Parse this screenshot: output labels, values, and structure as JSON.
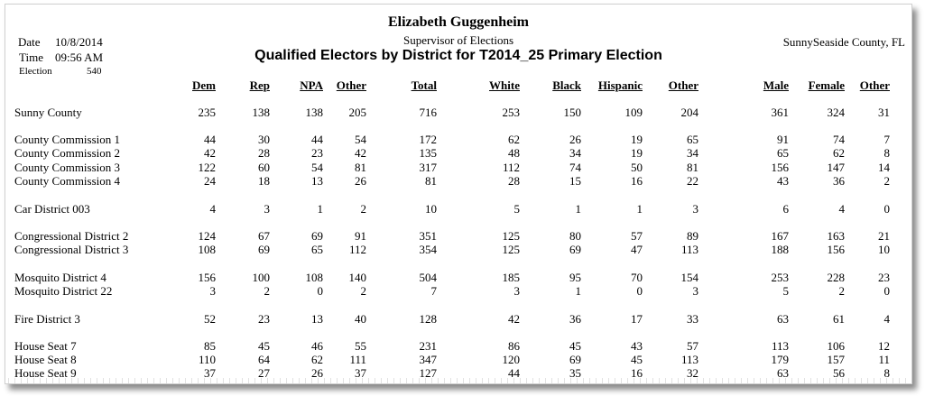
{
  "header": {
    "org_name": "Elizabeth Guggenheim",
    "org_title": "Supervisor of Elections",
    "report_title": "Qualified Electors by District for T2014_25 Primary Election",
    "date_label": "Date",
    "date_value": "10/8/2014",
    "time_label": "Time",
    "time_value": "09:56 AM",
    "election_label": "Election",
    "election_value": "540",
    "county": "SunnySeaside County, FL"
  },
  "columns": [
    "Dem",
    "Rep",
    "NPA",
    "Other",
    "Total",
    "White",
    "Black",
    "Hispanic",
    "Other",
    "Male",
    "Female",
    "Other"
  ],
  "rows": [
    {
      "name": "Sunny County",
      "values": [
        "235",
        "138",
        "138",
        "205",
        "716",
        "253",
        "150",
        "109",
        "204",
        "361",
        "324",
        "31"
      ]
    },
    {
      "name": "County Commission 1",
      "values": [
        "44",
        "30",
        "44",
        "54",
        "172",
        "62",
        "26",
        "19",
        "65",
        "91",
        "74",
        "7"
      ]
    },
    {
      "name": "County Commission 2",
      "values": [
        "42",
        "28",
        "23",
        "42",
        "135",
        "48",
        "34",
        "19",
        "34",
        "65",
        "62",
        "8"
      ]
    },
    {
      "name": "County Commission 3",
      "values": [
        "122",
        "60",
        "54",
        "81",
        "317",
        "112",
        "74",
        "50",
        "81",
        "156",
        "147",
        "14"
      ]
    },
    {
      "name": "County Commission 4",
      "values": [
        "24",
        "18",
        "13",
        "26",
        "81",
        "28",
        "15",
        "16",
        "22",
        "43",
        "36",
        "2"
      ]
    },
    {
      "name": "Car District 003",
      "values": [
        "4",
        "3",
        "1",
        "2",
        "10",
        "5",
        "1",
        "1",
        "3",
        "6",
        "4",
        "0"
      ]
    },
    {
      "name": "Congressional District 2",
      "values": [
        "124",
        "67",
        "69",
        "91",
        "351",
        "125",
        "80",
        "57",
        "89",
        "167",
        "163",
        "21"
      ]
    },
    {
      "name": "Congressional District 3",
      "values": [
        "108",
        "69",
        "65",
        "112",
        "354",
        "125",
        "69",
        "47",
        "113",
        "188",
        "156",
        "10"
      ]
    },
    {
      "name": "Mosquito District 4",
      "values": [
        "156",
        "100",
        "108",
        "140",
        "504",
        "185",
        "95",
        "70",
        "154",
        "253",
        "228",
        "23"
      ]
    },
    {
      "name": "Mosquito District 22",
      "values": [
        "3",
        "2",
        "0",
        "2",
        "7",
        "3",
        "1",
        "0",
        "3",
        "5",
        "2",
        "0"
      ]
    },
    {
      "name": "Fire District 3",
      "values": [
        "52",
        "23",
        "13",
        "40",
        "128",
        "42",
        "36",
        "17",
        "33",
        "63",
        "61",
        "4"
      ]
    },
    {
      "name": "House Seat 7",
      "values": [
        "85",
        "45",
        "46",
        "55",
        "231",
        "86",
        "45",
        "43",
        "57",
        "113",
        "106",
        "12"
      ]
    },
    {
      "name": "House Seat 8",
      "values": [
        "110",
        "64",
        "62",
        "111",
        "347",
        "120",
        "69",
        "45",
        "113",
        "179",
        "157",
        "11"
      ]
    },
    {
      "name": "House Seat 9",
      "values": [
        "37",
        "27",
        "26",
        "37",
        "127",
        "44",
        "35",
        "16",
        "32",
        "63",
        "56",
        "8"
      ]
    }
  ]
}
